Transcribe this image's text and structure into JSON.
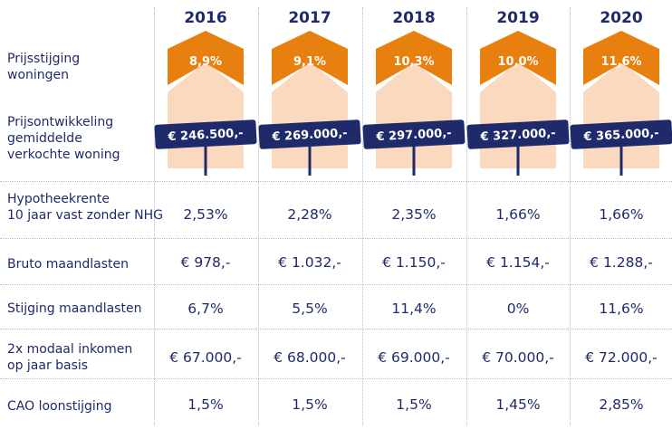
{
  "chart_data": {
    "type": "table",
    "years": [
      "2016",
      "2017",
      "2018",
      "2019",
      "2020"
    ],
    "rows": [
      {
        "label": "Prijsstijging woningen",
        "values": [
          "8,9%",
          "9,1%",
          "10,3%",
          "10,0%",
          "11,6%"
        ]
      },
      {
        "label": "Prijsontwikkeling gemiddelde verkochte woning",
        "values": [
          "€ 246.500,-",
          "€ 269.000,-",
          "€ 297.000,-",
          "€ 327.000,-",
          "€ 365.000,-"
        ]
      },
      {
        "label": "Hypotheekrente 10 jaar vast zonder NHG",
        "values": [
          "2,53%",
          "2,28%",
          "2,35%",
          "1,66%",
          "1,66%"
        ]
      },
      {
        "label": "Bruto maandlasten",
        "values": [
          "€ 978,-",
          "€ 1.032,-",
          "€ 1.150,-",
          "€ 1.154,-",
          "€ 1.288,-"
        ]
      },
      {
        "label": "Stijging maandlasten",
        "values": [
          "6,7%",
          "5,5%",
          "11,4%",
          "0%",
          "11,6%"
        ]
      },
      {
        "label": "2x modaal inkomen op jaar basis",
        "values": [
          "€ 67.000,-",
          "€ 68.000,-",
          "€ 69.000,-",
          "€ 70.000,-",
          "€ 72.000,-"
        ]
      },
      {
        "label": "CAO loonstijging",
        "values": [
          "1,5%",
          "1,5%",
          "1,5%",
          "1,45%",
          "2,85%"
        ]
      }
    ]
  },
  "label_lines": {
    "r0": [
      "Prijsstijging",
      "woningen"
    ],
    "r1": [
      "Prijsontwikkeling",
      "gemiddelde",
      "verkochte woning"
    ],
    "r2": [
      "Hypotheekrente",
      "10 jaar vast zonder NHG"
    ],
    "r3": [
      "Bruto maandlasten"
    ],
    "r4": [
      "Stijging maandlasten"
    ],
    "r5": [
      "2x modaal inkomen",
      "op jaar basis"
    ],
    "r6": [
      "CAO loonstijging"
    ]
  },
  "colors": {
    "text": "#1f2a6b",
    "roof": "#e8800f",
    "house_body": "#fbd9bf",
    "price_tag": "#1f2a6b",
    "grid": "#b9bdd4"
  }
}
